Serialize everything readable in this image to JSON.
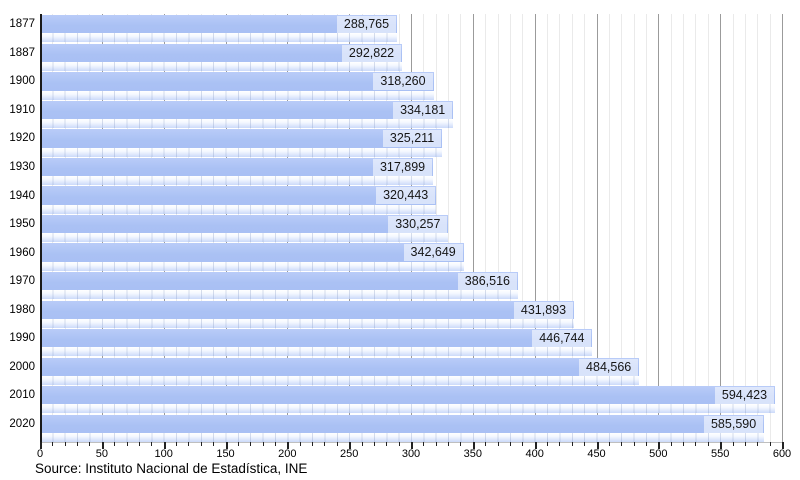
{
  "chart_data": {
    "type": "bar",
    "orientation": "horizontal",
    "title": "",
    "xlabel": "",
    "ylabel": "",
    "categories": [
      "1877",
      "1887",
      "1900",
      "1910",
      "1920",
      "1930",
      "1940",
      "1950",
      "1960",
      "1970",
      "1980",
      "1990",
      "2000",
      "2010",
      "2020"
    ],
    "values": [
      288765,
      292822,
      318260,
      334181,
      325211,
      317899,
      320443,
      330257,
      342649,
      386516,
      431893,
      446744,
      484566,
      594423,
      585590
    ],
    "value_labels": [
      "288,765",
      "292,822",
      "318,260",
      "334,181",
      "325,211",
      "317,899",
      "320,443",
      "330,257",
      "342,649",
      "386,516",
      "431,893",
      "446,744",
      "484,566",
      "594,423",
      "585,590"
    ],
    "x_axis_unit": "thousands",
    "xlim": [
      0,
      600
    ],
    "x_major_ticks": [
      0,
      50,
      100,
      150,
      200,
      250,
      300,
      350,
      400,
      450,
      500,
      550,
      600
    ],
    "x_minor_step": 10,
    "grid": "vertical, minor every 10 and major every 50",
    "legend": "none",
    "source": "Source: Instituto Nacional de Estadística, INE",
    "colors": {
      "bar": "#aac1f4",
      "bar_gloss_bottom": "#cbdafa",
      "value_label_bg": "rgba(255,255,255,0.55)",
      "grid_minor": "#eaeaea",
      "grid_major": "#9b9b9b",
      "axis": "#1a1a1a",
      "text": "#000000"
    }
  }
}
